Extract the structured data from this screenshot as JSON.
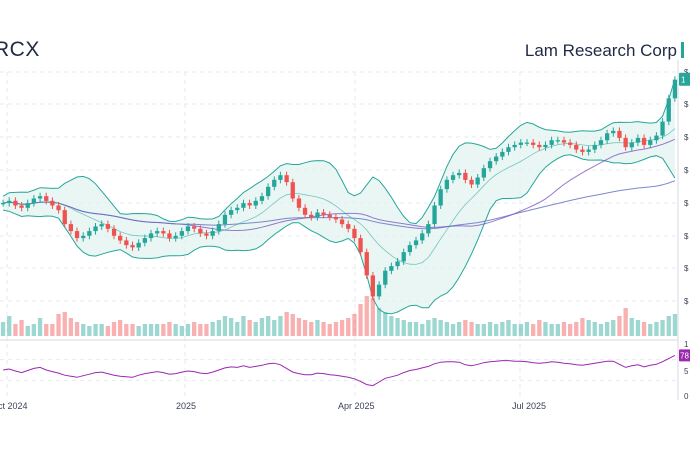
{
  "header": {
    "ticker": "RCX",
    "company": "Lam Research Corp"
  },
  "colors": {
    "up": "#26a69a",
    "down": "#ef5350",
    "band_fill": "#dff2ef",
    "band_line": "#26a69a",
    "ma_long": "#5c6bc0",
    "ma_mid": "#7e57c2",
    "rsi": "#9c27b0",
    "grid": "#e6e9ef"
  },
  "chart_data": {
    "type": "candlestick",
    "x_labels": [
      "ct 2024",
      "2025",
      "Apr 2025",
      "Jul 2025"
    ],
    "price_axis_ticks": [
      "$",
      "$",
      "$",
      "$",
      "$",
      "$",
      "$",
      "$"
    ],
    "last_price_badge": "1",
    "rsi_axis_ticks": [
      "1",
      "7",
      "5",
      "0"
    ],
    "rsi_badge": "78",
    "price_ylim_relative": [
      0,
      1
    ],
    "price_series": [
      0.45,
      0.46,
      0.44,
      0.43,
      0.45,
      0.47,
      0.48,
      0.46,
      0.44,
      0.42,
      0.36,
      0.33,
      0.3,
      0.31,
      0.33,
      0.35,
      0.36,
      0.34,
      0.31,
      0.29,
      0.27,
      0.26,
      0.28,
      0.3,
      0.32,
      0.33,
      0.32,
      0.3,
      0.31,
      0.33,
      0.35,
      0.34,
      0.32,
      0.31,
      0.33,
      0.36,
      0.4,
      0.42,
      0.43,
      0.45,
      0.44,
      0.46,
      0.48,
      0.52,
      0.55,
      0.57,
      0.54,
      0.47,
      0.43,
      0.4,
      0.39,
      0.41,
      0.4,
      0.39,
      0.38,
      0.36,
      0.34,
      0.3,
      0.24,
      0.14,
      0.05,
      0.1,
      0.16,
      0.18,
      0.2,
      0.24,
      0.27,
      0.29,
      0.32,
      0.36,
      0.44,
      0.51,
      0.55,
      0.57,
      0.58,
      0.55,
      0.53,
      0.56,
      0.6,
      0.63,
      0.65,
      0.67,
      0.69,
      0.7,
      0.71,
      0.71,
      0.7,
      0.69,
      0.7,
      0.72,
      0.72,
      0.71,
      0.7,
      0.68,
      0.67,
      0.68,
      0.7,
      0.72,
      0.75,
      0.76,
      0.73,
      0.69,
      0.71,
      0.73,
      0.7,
      0.72,
      0.74,
      0.8,
      0.9,
      0.98
    ],
    "rsi_series": [
      50,
      52,
      48,
      45,
      49,
      53,
      55,
      50,
      47,
      44,
      40,
      38,
      36,
      39,
      42,
      45,
      46,
      43,
      40,
      38,
      37,
      36,
      40,
      43,
      45,
      47,
      45,
      42,
      43,
      46,
      48,
      47,
      44,
      43,
      46,
      50,
      54,
      56,
      55,
      58,
      55,
      57,
      59,
      62,
      63,
      60,
      53,
      46,
      43,
      41,
      41,
      44,
      43,
      41,
      40,
      38,
      36,
      33,
      28,
      22,
      20,
      27,
      34,
      37,
      40,
      45,
      49,
      51,
      54,
      57,
      62,
      65,
      66,
      66,
      65,
      60,
      58,
      61,
      64,
      66,
      67,
      68,
      68,
      67,
      67,
      66,
      64,
      63,
      64,
      66,
      65,
      63,
      62,
      60,
      59,
      61,
      63,
      65,
      67,
      67,
      61,
      55,
      58,
      60,
      56,
      59,
      61,
      66,
      72,
      78
    ],
    "volume_series": [
      0.35,
      0.5,
      0.3,
      0.4,
      0.25,
      0.3,
      0.45,
      0.3,
      0.3,
      0.55,
      0.6,
      0.45,
      0.35,
      0.3,
      0.25,
      0.3,
      0.3,
      0.25,
      0.35,
      0.4,
      0.3,
      0.3,
      0.25,
      0.3,
      0.3,
      0.3,
      0.3,
      0.35,
      0.3,
      0.25,
      0.3,
      0.35,
      0.3,
      0.3,
      0.35,
      0.4,
      0.5,
      0.45,
      0.35,
      0.5,
      0.4,
      0.35,
      0.45,
      0.5,
      0.4,
      0.5,
      0.6,
      0.55,
      0.45,
      0.4,
      0.35,
      0.4,
      0.35,
      0.3,
      0.35,
      0.4,
      0.45,
      0.55,
      0.8,
      1.0,
      0.95,
      0.7,
      0.6,
      0.5,
      0.45,
      0.4,
      0.35,
      0.35,
      0.3,
      0.4,
      0.45,
      0.4,
      0.35,
      0.3,
      0.35,
      0.4,
      0.35,
      0.3,
      0.3,
      0.35,
      0.3,
      0.35,
      0.4,
      0.3,
      0.3,
      0.35,
      0.3,
      0.4,
      0.35,
      0.3,
      0.3,
      0.35,
      0.3,
      0.35,
      0.45,
      0.4,
      0.35,
      0.3,
      0.35,
      0.4,
      0.5,
      0.7,
      0.45,
      0.4,
      0.35,
      0.3,
      0.35,
      0.4,
      0.5,
      0.55
    ]
  }
}
